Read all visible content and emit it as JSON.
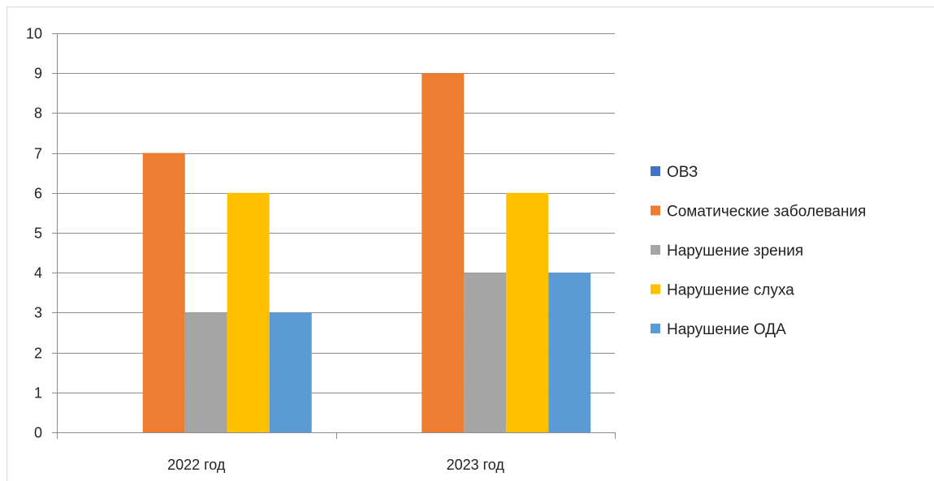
{
  "chart_data": {
    "type": "bar",
    "categories": [
      "2022 год",
      "2023 год"
    ],
    "series": [
      {
        "name": "ОВЗ",
        "values": [
          0,
          0
        ],
        "color": "#4472C4"
      },
      {
        "name": "Соматические заболевания",
        "values": [
          7,
          9
        ],
        "color": "#ED7D31"
      },
      {
        "name": "Нарушение зрения",
        "values": [
          3,
          4
        ],
        "color": "#A5A5A5"
      },
      {
        "name": "Нарушение слуха",
        "values": [
          6,
          6
        ],
        "color": "#FFC000"
      },
      {
        "name": "Нарушение ОДА",
        "values": [
          3,
          4
        ],
        "color": "#5B9BD5"
      }
    ],
    "ylim": [
      0,
      10
    ],
    "yticks": [
      "0",
      "1",
      "2",
      "3",
      "4",
      "5",
      "6",
      "7",
      "8",
      "9",
      "10"
    ],
    "grid": true,
    "legend_position": "right"
  }
}
